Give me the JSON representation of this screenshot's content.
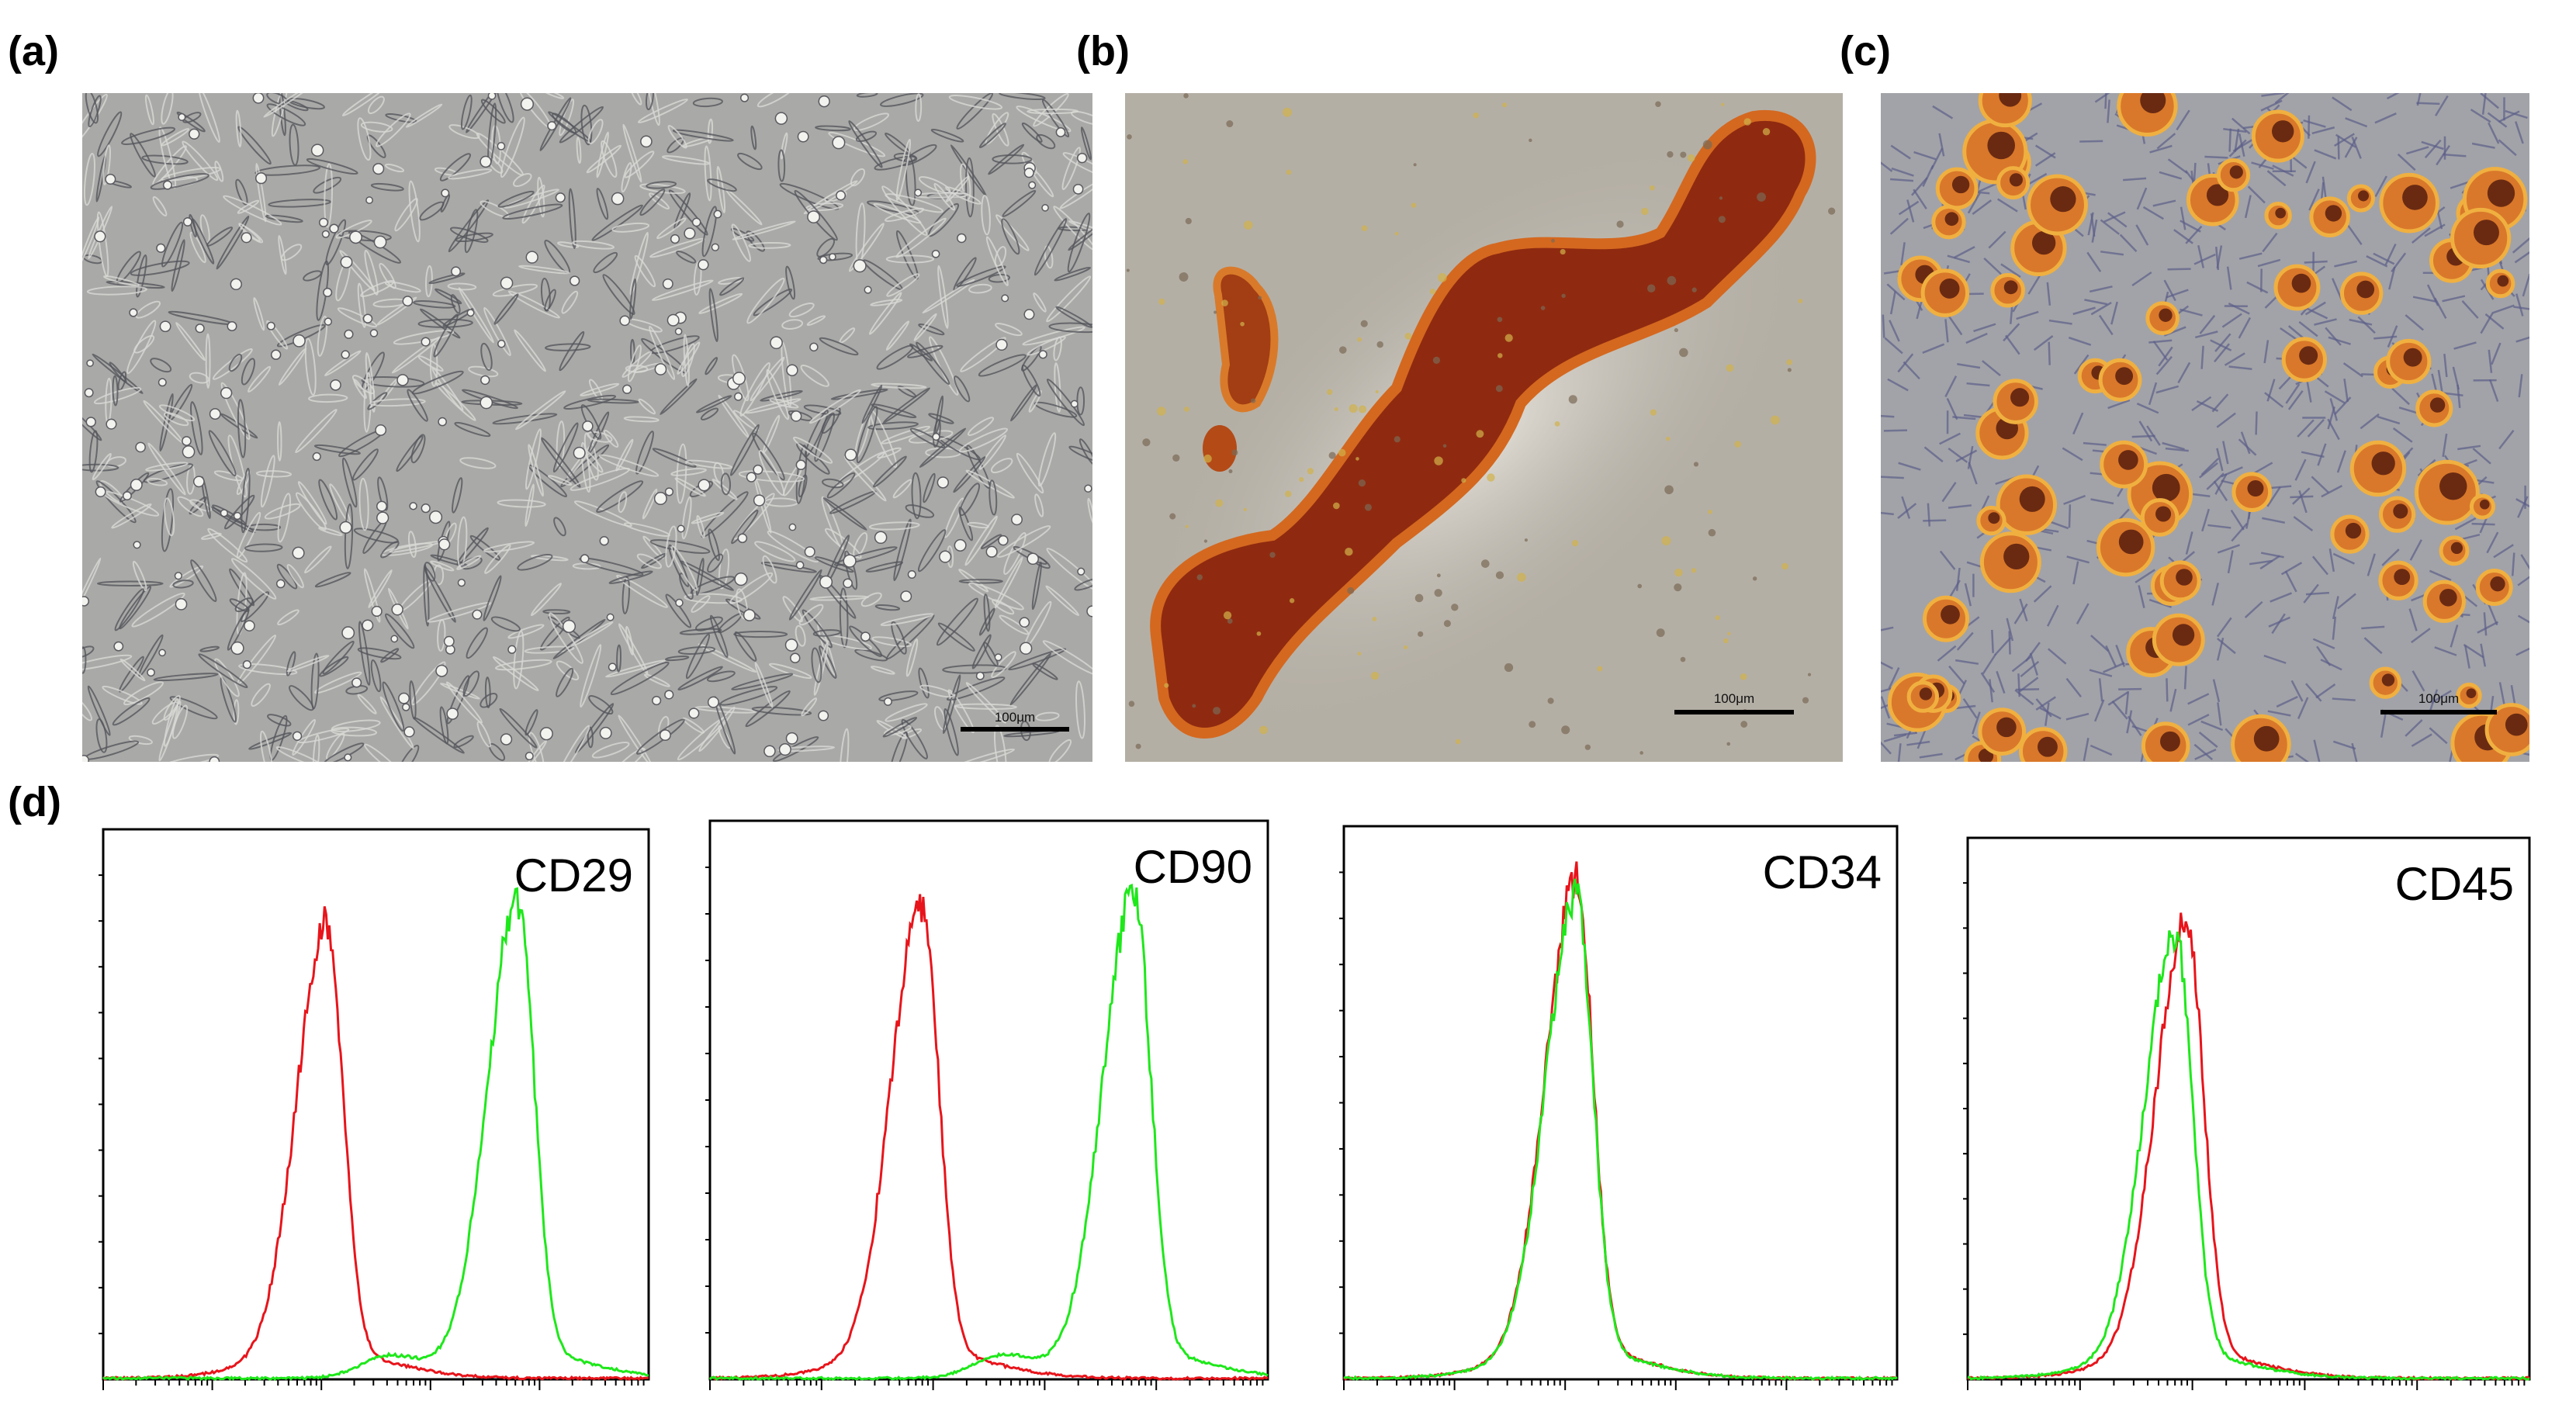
{
  "panel_labels": [
    "(a)",
    "(b)",
    "(c)",
    "(d)"
  ],
  "scale_bars": [
    "100μm",
    "100μm",
    "100μm"
  ],
  "markers": [
    "CD29",
    "CD90",
    "CD34",
    "CD45"
  ]
}
